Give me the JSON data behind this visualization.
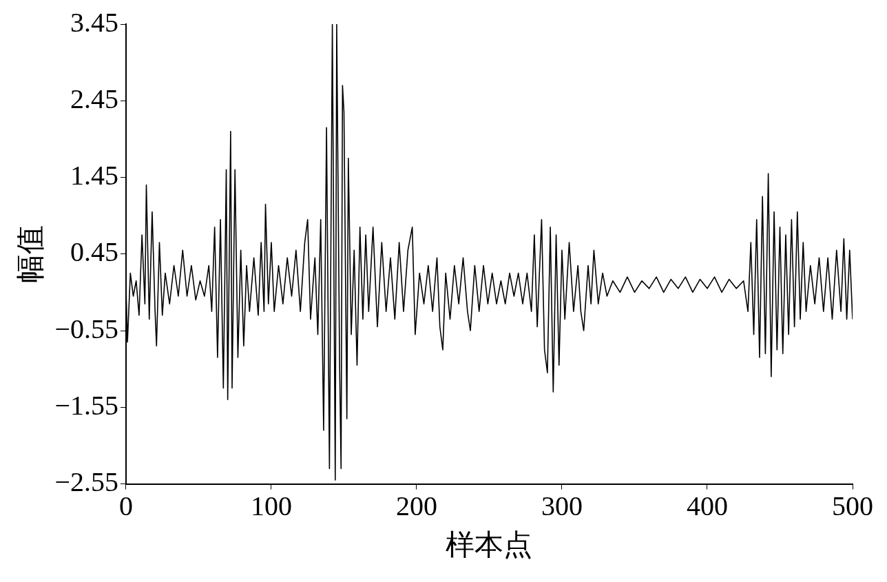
{
  "chart_data": {
    "type": "line",
    "xlabel": "样本点",
    "ylabel": "幅值",
    "xlim": [
      0,
      500
    ],
    "xticks": [
      0,
      100,
      200,
      300,
      400,
      500
    ],
    "ylim": [
      -2.55,
      3.45
    ],
    "yticks": [
      {
        "value": -2.55,
        "label": "−2.55"
      },
      {
        "value": -1.55,
        "label": "−1.55"
      },
      {
        "value": -0.55,
        "label": "−0.55"
      },
      0.45,
      1.45,
      2.45,
      3.45
    ],
    "grid": false,
    "legend": false,
    "marker": "none",
    "line_style": "solid",
    "series": [
      {
        "color": "#000000",
        "x": [
          0,
          1,
          3,
          5,
          7,
          9,
          11,
          13,
          14,
          16,
          18,
          20,
          21,
          23,
          25,
          27,
          30,
          33,
          36,
          39,
          42,
          45,
          48,
          51,
          54,
          57,
          59,
          61,
          63,
          65,
          67,
          69,
          70,
          72,
          73,
          75,
          77,
          79,
          81,
          83,
          85,
          88,
          91,
          93,
          95,
          96,
          98,
          100,
          102,
          105,
          108,
          111,
          114,
          117,
          120,
          123,
          125,
          127,
          130,
          132,
          134,
          136,
          138,
          140,
          142,
          144,
          145,
          147,
          148,
          149,
          150,
          152,
          153,
          155,
          157,
          159,
          161,
          163,
          165,
          167,
          170,
          173,
          176,
          179,
          182,
          185,
          188,
          191,
          194,
          197,
          199,
          202,
          205,
          208,
          211,
          214,
          216,
          218,
          220,
          223,
          226,
          229,
          232,
          235,
          237,
          240,
          243,
          246,
          249,
          252,
          255,
          258,
          261,
          264,
          267,
          270,
          273,
          276,
          279,
          281,
          283,
          286,
          288,
          290,
          292,
          294,
          296,
          298,
          300,
          302,
          305,
          308,
          311,
          313,
          315,
          318,
          320,
          322,
          325,
          328,
          331,
          335,
          340,
          345,
          350,
          355,
          360,
          365,
          370,
          375,
          380,
          385,
          390,
          395,
          400,
          405,
          410,
          415,
          420,
          425,
          428,
          430,
          432,
          434,
          436,
          438,
          440,
          442,
          444,
          446,
          448,
          450,
          452,
          454,
          456,
          458,
          460,
          462,
          464,
          466,
          468,
          471,
          474,
          477,
          480,
          483,
          486,
          489,
          492,
          494,
          496,
          498,
          500
        ],
        "values": [
          0.0,
          -0.7,
          0.2,
          -0.1,
          0.1,
          -0.35,
          0.7,
          -0.2,
          1.35,
          -0.4,
          1.0,
          -0.3,
          -0.75,
          0.6,
          -0.35,
          0.2,
          -0.2,
          0.3,
          -0.1,
          0.5,
          -0.1,
          0.3,
          -0.15,
          0.1,
          -0.1,
          0.3,
          -0.3,
          0.8,
          -0.9,
          0.9,
          -1.3,
          1.55,
          -1.45,
          2.05,
          -1.3,
          1.55,
          -0.9,
          0.5,
          -0.75,
          0.3,
          -0.3,
          0.4,
          -0.35,
          0.6,
          -0.3,
          1.1,
          -0.2,
          0.6,
          -0.3,
          0.3,
          -0.2,
          0.4,
          -0.1,
          0.5,
          -0.3,
          0.6,
          0.9,
          -0.4,
          0.4,
          -0.6,
          0.9,
          -1.85,
          2.1,
          -2.35,
          3.45,
          -2.5,
          3.45,
          -1.0,
          -2.35,
          2.65,
          2.3,
          -1.7,
          1.7,
          -0.6,
          0.5,
          -1.0,
          0.8,
          -0.4,
          0.7,
          -0.3,
          0.8,
          -0.5,
          0.6,
          -0.3,
          0.4,
          -0.4,
          0.6,
          -0.3,
          0.5,
          0.8,
          -0.6,
          0.2,
          -0.2,
          0.3,
          -0.3,
          0.4,
          -0.5,
          -0.8,
          0.2,
          -0.4,
          0.3,
          -0.2,
          0.4,
          -0.3,
          -0.55,
          0.3,
          -0.3,
          0.3,
          -0.2,
          0.2,
          -0.2,
          0.1,
          -0.2,
          0.2,
          -0.1,
          0.2,
          -0.2,
          0.2,
          -0.3,
          0.7,
          -0.5,
          0.9,
          -0.8,
          -1.1,
          0.8,
          -1.35,
          0.7,
          -1.0,
          0.5,
          -0.4,
          0.6,
          -0.3,
          0.3,
          -0.3,
          -0.55,
          0.3,
          -0.2,
          0.5,
          -0.2,
          0.2,
          -0.1,
          0.1,
          -0.05,
          0.15,
          -0.05,
          0.1,
          0.0,
          0.15,
          -0.05,
          0.12,
          0.0,
          0.15,
          -0.05,
          0.12,
          0.0,
          0.15,
          -0.05,
          0.12,
          0.0,
          0.1,
          -0.3,
          0.6,
          -0.6,
          0.9,
          -0.9,
          1.2,
          -0.85,
          1.5,
          -1.15,
          1.0,
          -0.8,
          0.8,
          -0.85,
          0.7,
          -0.6,
          0.9,
          -0.5,
          1.0,
          -0.4,
          0.6,
          -0.3,
          0.3,
          -0.2,
          0.4,
          -0.3,
          0.4,
          -0.4,
          0.5,
          -0.3,
          0.65,
          -0.4,
          0.5,
          -0.4
        ]
      }
    ]
  }
}
